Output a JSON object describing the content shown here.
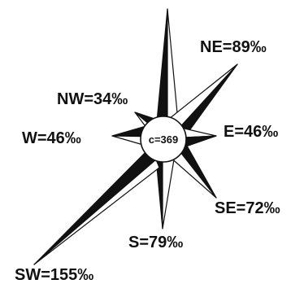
{
  "chart_data": {
    "type": "wind-rose",
    "center_label": "c=369",
    "unit": "‰",
    "directions": [
      {
        "dir": "NE",
        "label": "NE=89‰",
        "value": 89
      },
      {
        "dir": "E",
        "label": "E=46‰",
        "value": 46
      },
      {
        "dir": "SE",
        "label": "SE=72‰",
        "value": 72
      },
      {
        "dir": "S",
        "label": "S=79‰",
        "value": 79
      },
      {
        "dir": "SW",
        "label": "SW=155‰",
        "value": 155
      },
      {
        "dir": "W",
        "label": "W=46‰",
        "value": 46
      },
      {
        "dir": "NW",
        "label": "NW=34‰",
        "value": 34
      }
    ],
    "colors": {
      "dark": "#111111",
      "light": "#ffffff",
      "stroke": "#111111"
    }
  }
}
